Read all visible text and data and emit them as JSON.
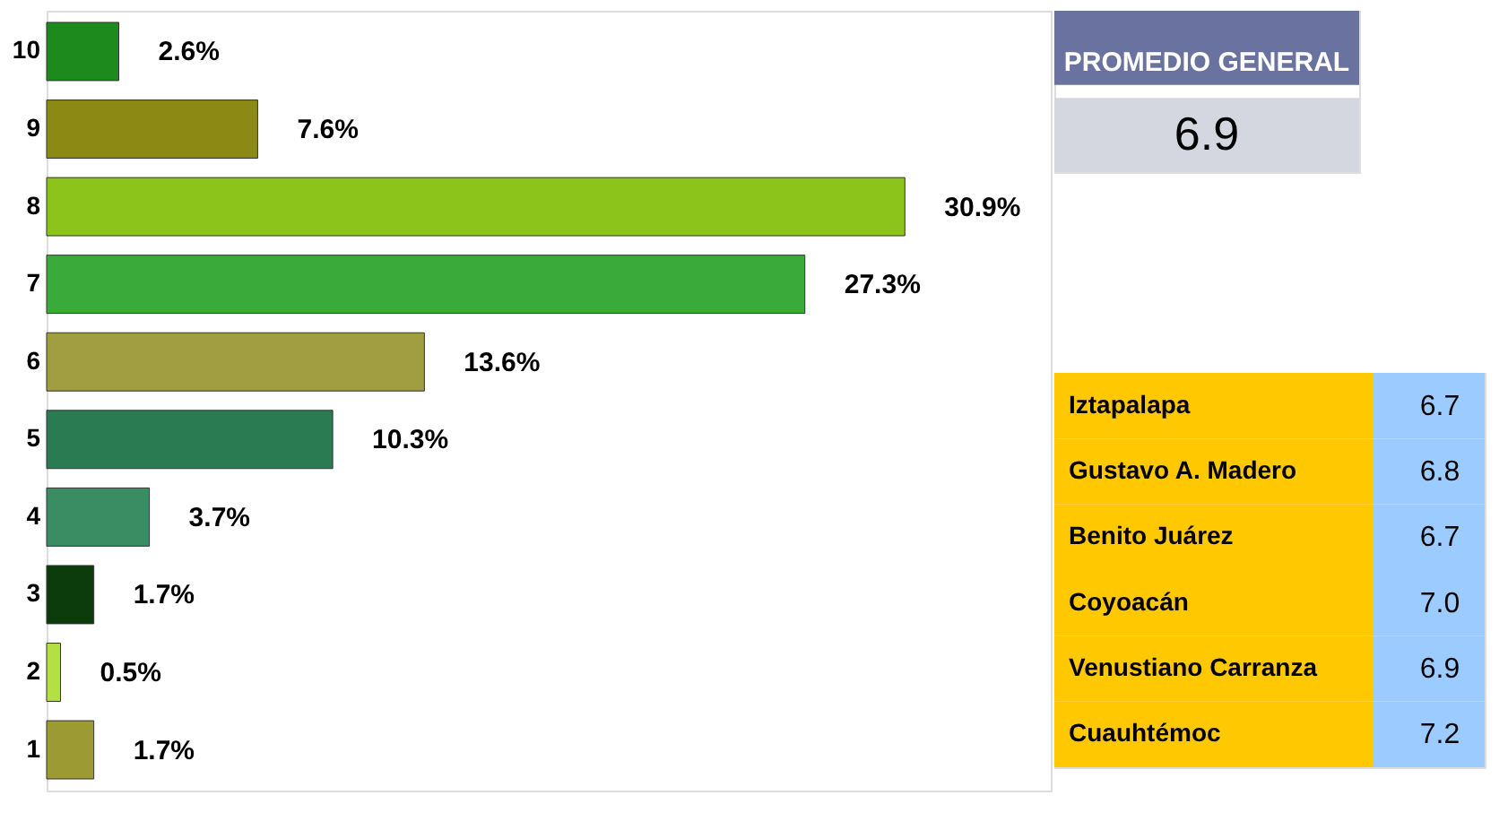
{
  "chart_data": [
    {
      "type": "bar",
      "orientation": "horizontal",
      "data_labels": true,
      "categories": [
        "10",
        "9",
        "8",
        "7",
        "6",
        "5",
        "4",
        "3",
        "2",
        "1"
      ],
      "values": [
        2.6,
        7.6,
        30.9,
        27.3,
        13.6,
        10.3,
        3.7,
        1.7,
        0.5,
        1.7
      ],
      "colors": [
        "#1c8a1c",
        "#8c8a14",
        "#8cc41c",
        "#3aaa3a",
        "#a09e40",
        "#2a7a52",
        "#3a8c62",
        "#0c3c0c",
        "#b4e044",
        "#9c9a32"
      ],
      "value_labels": [
        "2.6%",
        "7.6%",
        "30.9%",
        "27.3%",
        "13.6%",
        "10.3%",
        "3.7%",
        "1.7%",
        "0.5%",
        "1.7%"
      ],
      "tick_labels": "y"
    },
    {
      "type": "other",
      "title": "PROMEDIO GENERAL",
      "annotations": [
        "6.9"
      ],
      "categories": [
        "Iztapalapa",
        "Gustavo A. Madero",
        "Benito Juárez",
        "Coyoacán",
        "Venustiano Carranza",
        "Cuauhtémoc"
      ],
      "values": [
        6.7,
        6.8,
        6.7,
        7.0,
        6.9,
        7.2
      ],
      "value_labels": [
        "6.7",
        "6.8",
        "6.7",
        "7.0",
        "6.9",
        "7.2"
      ],
      "data_labels": true
    }
  ]
}
